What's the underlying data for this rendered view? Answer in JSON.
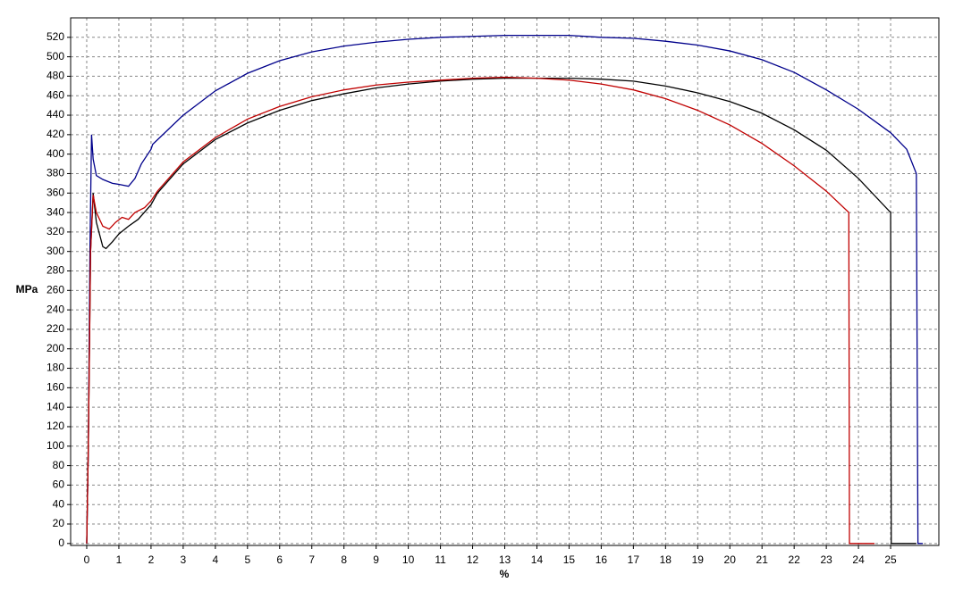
{
  "chart_data": {
    "type": "line",
    "xlabel": "%",
    "ylabel": "MPa",
    "xlim": [
      -0.5,
      26.5
    ],
    "ylim": [
      -2,
      540
    ],
    "xticks": [
      0,
      1,
      2,
      3,
      4,
      5,
      6,
      7,
      8,
      9,
      10,
      11,
      12,
      13,
      14,
      15,
      16,
      17,
      18,
      19,
      20,
      21,
      22,
      23,
      24,
      25
    ],
    "yticks": [
      0,
      20,
      40,
      60,
      80,
      100,
      120,
      140,
      160,
      180,
      200,
      220,
      240,
      260,
      280,
      300,
      320,
      340,
      360,
      380,
      400,
      420,
      440,
      460,
      480,
      500,
      520
    ],
    "grid": true,
    "series": [
      {
        "color": "#00008b",
        "x": [
          0,
          0.05,
          0.1,
          0.15,
          0.2,
          0.3,
          0.5,
          0.8,
          1.0,
          1.3,
          1.5,
          1.7,
          2.0,
          2.05,
          3,
          4,
          5,
          6,
          7,
          8,
          9,
          10,
          11,
          12,
          13,
          14,
          15,
          16,
          17,
          18,
          19,
          20,
          21,
          22,
          23,
          24,
          25,
          25.5,
          25.8,
          25.85,
          26
        ],
        "values": [
          0,
          100,
          300,
          420,
          395,
          378,
          374,
          370,
          369,
          367,
          375,
          390,
          405,
          410,
          440,
          465,
          483,
          496,
          505,
          511,
          515,
          518,
          520,
          521,
          522,
          522,
          522,
          520,
          519,
          516,
          512,
          506,
          497,
          484,
          466,
          446,
          422,
          405,
          380,
          0,
          0
        ]
      },
      {
        "color": "#000000",
        "x": [
          0,
          0.05,
          0.12,
          0.2,
          0.3,
          0.5,
          0.6,
          0.8,
          1.0,
          1.3,
          1.6,
          2.0,
          2.2,
          3,
          4,
          5,
          6,
          7,
          8,
          9,
          10,
          11,
          12,
          13,
          14,
          15,
          16,
          17,
          18,
          19,
          20,
          21,
          22,
          23,
          24,
          25,
          25.02,
          25.8
        ],
        "values": [
          0,
          100,
          300,
          360,
          330,
          305,
          303,
          310,
          318,
          326,
          333,
          348,
          360,
          390,
          415,
          432,
          445,
          455,
          462,
          468,
          472,
          475,
          477,
          478,
          478,
          478,
          477,
          475,
          470,
          463,
          454,
          442,
          425,
          404,
          375,
          340,
          0,
          0
        ]
      },
      {
        "color": "#c00000",
        "x": [
          0,
          0.05,
          0.12,
          0.2,
          0.3,
          0.5,
          0.7,
          0.9,
          1.1,
          1.3,
          1.5,
          1.8,
          2.0,
          2.2,
          3,
          4,
          5,
          6,
          7,
          8,
          9,
          10,
          11,
          12,
          13,
          14,
          15,
          16,
          17,
          18,
          19,
          20,
          21,
          22,
          23,
          23.7,
          23.72,
          24.5
        ],
        "values": [
          0,
          100,
          300,
          358,
          340,
          326,
          323,
          330,
          335,
          333,
          340,
          345,
          352,
          362,
          392,
          417,
          436,
          449,
          459,
          466,
          471,
          474,
          476,
          478,
          479,
          478,
          476,
          472,
          466,
          457,
          445,
          430,
          411,
          388,
          362,
          340,
          0,
          0
        ]
      }
    ]
  }
}
